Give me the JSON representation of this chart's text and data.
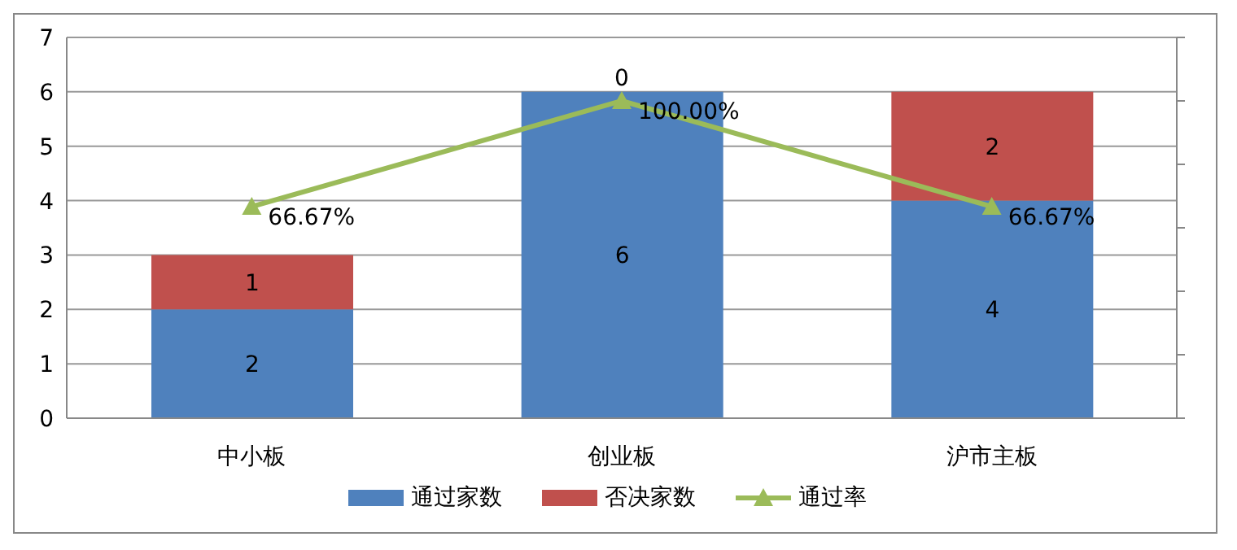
{
  "chart_data": {
    "type": "bar",
    "categories": [
      "中小板",
      "创业板",
      "沪市主板"
    ],
    "stacked": true,
    "series": [
      {
        "name": "通过家数",
        "color": "#4f81bd",
        "values": [
          2,
          6,
          4
        ]
      },
      {
        "name": "否决家数",
        "color": "#c0504d",
        "values": [
          1,
          0,
          2
        ]
      },
      {
        "name": "通过率",
        "type": "line",
        "axis": "y2",
        "color": "#9bbb59",
        "values": [
          66.67,
          100,
          66.67
        ],
        "value_labels": [
          "66.67%",
          "100.00%",
          "66.67%"
        ],
        "marker": "triangle"
      }
    ],
    "data_labels": true,
    "ylim": [
      0,
      7
    ],
    "yticks": [
      0,
      1,
      2,
      3,
      4,
      5,
      6,
      7
    ],
    "y2lim": [
      0,
      120
    ],
    "y2ticks": [
      {
        "value": 0,
        "label": null
      },
      {
        "value": 20,
        "label": null
      },
      {
        "value": 40,
        "label": null
      },
      {
        "value": 60,
        "label": null
      },
      {
        "value": 80,
        "label": null
      },
      {
        "value": 100,
        "label": null
      },
      {
        "value": 120,
        "label": null
      }
    ],
    "grid": "y",
    "legend": "bottom"
  }
}
